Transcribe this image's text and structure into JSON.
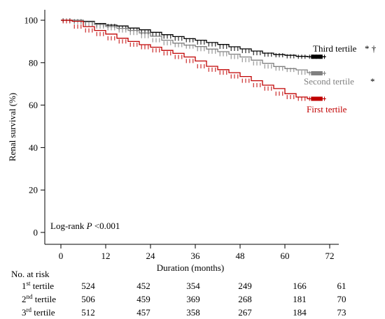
{
  "chart_data": {
    "type": "line",
    "subtype": "kaplan-meier",
    "xlabel": "Duration (months)",
    "ylabel": "Renal survival (%)",
    "xlim": [
      0,
      72
    ],
    "ylim": [
      0,
      100
    ],
    "x_ticks": [
      "0",
      "12",
      "24",
      "36",
      "48",
      "60",
      "72"
    ],
    "y_ticks": [
      "0",
      "20",
      "40",
      "60",
      "80",
      "100"
    ],
    "grid": false,
    "annotation": "Log-rank P <0.001",
    "series": [
      {
        "name": "Third tertile",
        "color": "#000000",
        "marker": "* †",
        "x": [
          0,
          3,
          6,
          9,
          12,
          15,
          18,
          21,
          24,
          27,
          30,
          33,
          36,
          39,
          42,
          45,
          48,
          51,
          54,
          57,
          60,
          63,
          66,
          69,
          71
        ],
        "y": [
          100,
          100,
          99.5,
          98.5,
          97.7,
          97.3,
          96.3,
          95.5,
          94.3,
          93.2,
          92.3,
          91.3,
          90.6,
          89.5,
          88.6,
          87.5,
          86.5,
          85.5,
          84.5,
          83.8,
          83.5,
          83,
          82.8,
          82.8,
          82.8
        ]
      },
      {
        "name": "Second tertile",
        "color": "#808080",
        "marker": "*",
        "x": [
          0,
          3,
          6,
          9,
          12,
          15,
          18,
          21,
          24,
          27,
          30,
          33,
          36,
          39,
          42,
          45,
          48,
          51,
          54,
          57,
          60,
          63,
          66,
          69,
          71
        ],
        "y": [
          100,
          100,
          99.2,
          98,
          97,
          96.2,
          95.2,
          94,
          92.5,
          90.6,
          89.2,
          88.3,
          87.6,
          86.4,
          85.2,
          84,
          82.7,
          81.2,
          79.7,
          78.2,
          77.2,
          76.6,
          75.3,
          75,
          75
        ]
      },
      {
        "name": "First tertile",
        "color": "#c00000",
        "marker": "",
        "x": [
          0,
          3,
          6,
          9,
          12,
          15,
          18,
          21,
          24,
          27,
          30,
          33,
          36,
          39,
          42,
          45,
          48,
          51,
          54,
          57,
          60,
          63,
          66,
          69,
          71
        ],
        "y": [
          100,
          99.5,
          97,
          95.2,
          93.5,
          91.5,
          90,
          88.5,
          87.3,
          85.8,
          84.4,
          82.7,
          80.8,
          78.3,
          76.7,
          75.3,
          73.5,
          71.5,
          69.4,
          67.8,
          65.4,
          63.8,
          63,
          63,
          63
        ]
      }
    ],
    "risk_table": {
      "title": "No. at risk",
      "rows": [
        {
          "num": "1",
          "sup": "st",
          "label": " tertile",
          "values": [
            "524",
            "452",
            "354",
            "249",
            "166",
            "61"
          ]
        },
        {
          "num": "2",
          "sup": "nd",
          "label": " tertile",
          "values": [
            "506",
            "459",
            "369",
            "268",
            "181",
            "70"
          ]
        },
        {
          "num": "3",
          "sup": "rd",
          "label": " tertile",
          "values": [
            "512",
            "457",
            "358",
            "267",
            "184",
            "73"
          ]
        }
      ]
    }
  }
}
